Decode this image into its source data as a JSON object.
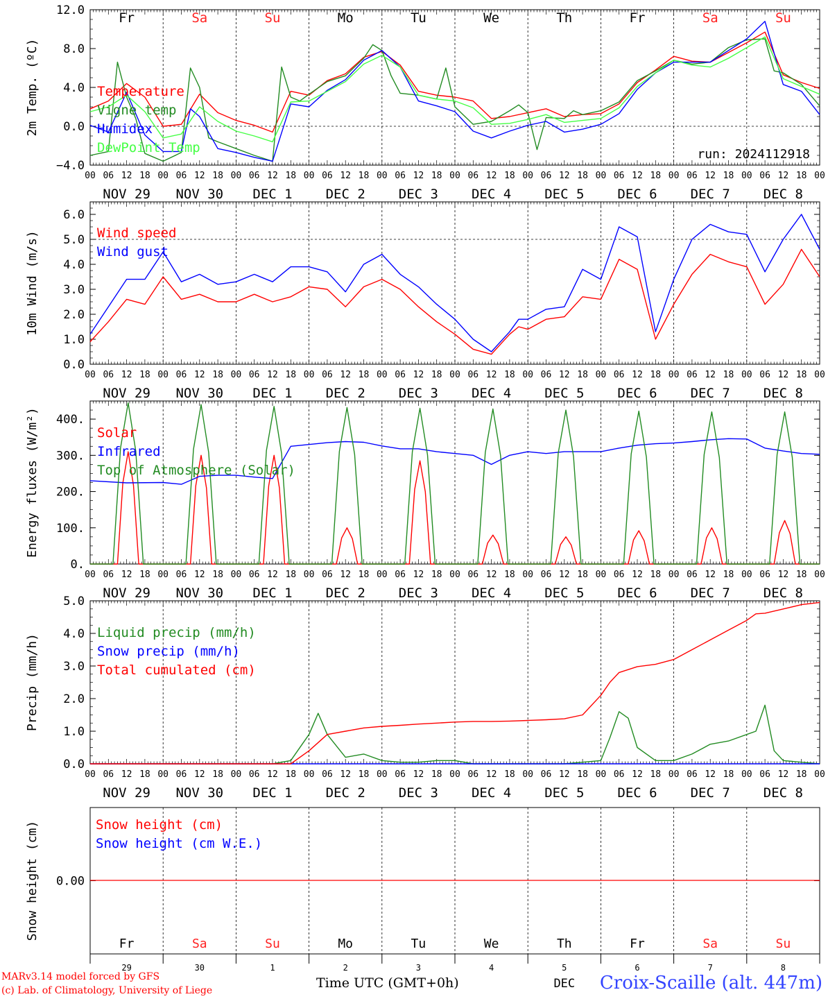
{
  "run_label": "run: 2024112918",
  "days": {
    "names": [
      "Fr",
      "Sa",
      "Su",
      "Mo",
      "Tu",
      "We",
      "Th",
      "Fr",
      "Sa",
      "Su"
    ],
    "weekend_color": "#ff2222",
    "weekday_color": "#000000",
    "weekend_flags": [
      false,
      true,
      true,
      false,
      false,
      false,
      false,
      false,
      true,
      true
    ],
    "date_labels": [
      "NOV 29",
      "NOV 30",
      "DEC  1",
      "DEC  2",
      "DEC  3",
      "DEC  4",
      "DEC  5",
      "DEC  6",
      "DEC  7",
      "DEC  8"
    ],
    "hour_labels": [
      "00",
      "06",
      "12",
      "18"
    ],
    "final_hour_label": "00",
    "bottom_day_numbers": [
      "29",
      "30",
      "1",
      "2",
      "3",
      "4",
      "5",
      "6",
      "7",
      "8"
    ],
    "bottom_month_label": "DEC"
  },
  "footer": {
    "credit_line1": "MARv3.14 model forced by GFS",
    "credit_line2": "(c) Lab. of Climatology, University of Liege",
    "xaxis_label": "Time UTC (GMT+0h)",
    "location": "Croix-Scaille (alt. 447m)"
  },
  "chart_data": [
    {
      "id": "temperature",
      "type": "line",
      "ylabel": "2m Temp. (ºC)",
      "ylim": [
        -4,
        12
      ],
      "yticks": [
        -4,
        0,
        4,
        8,
        12
      ],
      "ytick_labels": [
        "−4.0",
        "0.0",
        "4.0",
        "8.0",
        "12.0"
      ],
      "reference_line": 0,
      "x_unit": "hours since NOV 29 00 UTC",
      "series": [
        {
          "name": "Temperature",
          "color": "#ff0000",
          "x": [
            0,
            6,
            12,
            18,
            24,
            30,
            36,
            42,
            48,
            54,
            60,
            66,
            72,
            78,
            84,
            90,
            96,
            102,
            108,
            114,
            120,
            126,
            132,
            138,
            144,
            150,
            156,
            162,
            168,
            174,
            180,
            186,
            192,
            198,
            204,
            210,
            216,
            222,
            228,
            234,
            240
          ],
          "values": [
            1.8,
            2.6,
            4.4,
            3.0,
            0.0,
            0.2,
            3.3,
            1.4,
            0.6,
            0.1,
            -0.6,
            3.6,
            3.2,
            4.7,
            5.4,
            7.1,
            7.7,
            6.3,
            3.6,
            3.2,
            3.0,
            2.6,
            0.8,
            1.0,
            1.4,
            1.8,
            1.0,
            1.2,
            1.3,
            2.3,
            4.5,
            5.8,
            7.2,
            6.7,
            6.6,
            7.6,
            8.6,
            9.7,
            5.3,
            4.5,
            3.9
          ]
        },
        {
          "name": "Vigne temp",
          "color": "#228b22",
          "x": [
            0,
            6,
            9,
            12,
            15,
            18,
            24,
            30,
            33,
            36,
            39,
            42,
            48,
            54,
            60,
            63,
            66,
            69,
            72,
            78,
            84,
            90,
            93,
            96,
            99,
            102,
            108,
            114,
            117,
            120,
            126,
            132,
            138,
            141,
            144,
            147,
            150,
            156,
            159,
            162,
            168,
            174,
            180,
            186,
            192,
            198,
            204,
            210,
            216,
            222,
            225,
            228,
            234,
            240
          ],
          "values": [
            -3.0,
            -2.6,
            6.6,
            3.0,
            0.8,
            -2.8,
            -3.6,
            -2.7,
            6.0,
            4.0,
            -1.2,
            -1.6,
            -2.3,
            -3.0,
            -3.6,
            6.1,
            3.0,
            2.6,
            3.3,
            4.6,
            5.2,
            7.0,
            8.4,
            7.8,
            5.2,
            3.4,
            3.2,
            2.8,
            6.0,
            2.0,
            0.2,
            0.5,
            1.6,
            2.2,
            1.4,
            -2.4,
            0.9,
            0.8,
            1.6,
            1.2,
            1.6,
            2.5,
            4.7,
            5.7,
            6.8,
            6.4,
            6.6,
            8.1,
            8.9,
            9.0,
            5.7,
            5.5,
            4.3,
            2.1
          ]
        },
        {
          "name": "Humidex",
          "color": "#0000ff",
          "x": [
            0,
            6,
            12,
            18,
            24,
            30,
            33,
            36,
            42,
            48,
            54,
            60,
            66,
            72,
            78,
            84,
            90,
            96,
            102,
            108,
            114,
            120,
            126,
            132,
            138,
            144,
            150,
            156,
            162,
            168,
            174,
            180,
            186,
            192,
            198,
            204,
            210,
            216,
            222,
            228,
            234,
            240
          ],
          "values": [
            0.1,
            -0.6,
            3.5,
            -0.9,
            -2.6,
            -2.6,
            1.8,
            1.0,
            -2.3,
            -2.7,
            -3.2,
            -3.6,
            2.3,
            2.0,
            3.7,
            4.8,
            6.8,
            7.8,
            6.1,
            2.6,
            2.1,
            1.5,
            -0.5,
            -1.2,
            -0.5,
            0.1,
            0.5,
            -0.6,
            -0.3,
            0.2,
            1.3,
            3.8,
            5.5,
            6.6,
            6.6,
            6.6,
            7.8,
            9.0,
            10.8,
            4.3,
            3.6,
            1.2
          ]
        },
        {
          "name": "DewPoint Temp",
          "color": "#44ff44",
          "x": [
            0,
            6,
            12,
            18,
            24,
            30,
            36,
            42,
            48,
            54,
            60,
            66,
            72,
            78,
            84,
            90,
            96,
            102,
            108,
            114,
            120,
            126,
            132,
            138,
            144,
            150,
            156,
            162,
            168,
            174,
            180,
            186,
            192,
            198,
            204,
            210,
            216,
            222,
            228,
            234,
            240
          ],
          "values": [
            1.5,
            2.0,
            3.2,
            1.5,
            -1.2,
            -0.8,
            2.0,
            0.5,
            -0.5,
            -1.0,
            -1.6,
            2.5,
            2.6,
            3.6,
            4.6,
            6.4,
            7.3,
            6.1,
            3.2,
            2.8,
            2.6,
            1.9,
            0.2,
            0.3,
            0.7,
            1.2,
            0.4,
            0.6,
            0.8,
            1.9,
            4.1,
            5.5,
            6.8,
            6.3,
            6.1,
            7.0,
            8.1,
            9.2,
            4.9,
            4.1,
            3.3
          ]
        }
      ]
    },
    {
      "id": "wind",
      "type": "line",
      "ylabel": "10m Wind (m/s)",
      "ylim": [
        0,
        6.5
      ],
      "yticks": [
        0,
        1,
        2,
        3,
        4,
        5,
        6
      ],
      "ytick_labels": [
        "0.0",
        "1.0",
        "2.0",
        "3.0",
        "4.0",
        "5.0",
        "6.0"
      ],
      "reference_line": 5,
      "x_unit": "hours since NOV 29 00 UTC",
      "series": [
        {
          "name": "Wind speed",
          "color": "#ff0000",
          "x": [
            0,
            6,
            12,
            18,
            24,
            30,
            36,
            42,
            48,
            54,
            60,
            66,
            72,
            78,
            84,
            90,
            96,
            102,
            108,
            114,
            120,
            126,
            132,
            138,
            141,
            144,
            150,
            156,
            162,
            168,
            174,
            180,
            186,
            192,
            198,
            204,
            210,
            216,
            222,
            228,
            234,
            240
          ],
          "values": [
            0.9,
            1.7,
            2.6,
            2.4,
            3.5,
            2.6,
            2.8,
            2.5,
            2.5,
            2.8,
            2.5,
            2.7,
            3.1,
            3.0,
            2.3,
            3.1,
            3.4,
            3.0,
            2.3,
            1.7,
            1.2,
            0.6,
            0.4,
            1.2,
            1.5,
            1.4,
            1.8,
            1.9,
            2.7,
            2.6,
            4.2,
            3.8,
            1.0,
            2.4,
            3.6,
            4.4,
            4.1,
            3.9,
            2.4,
            3.2,
            4.6,
            3.5
          ]
        },
        {
          "name": "Wind gust",
          "color": "#0000ff",
          "x": [
            0,
            6,
            12,
            18,
            24,
            30,
            36,
            42,
            48,
            54,
            60,
            66,
            72,
            78,
            84,
            90,
            96,
            102,
            108,
            114,
            120,
            126,
            132,
            138,
            141,
            144,
            150,
            156,
            162,
            168,
            174,
            180,
            186,
            192,
            198,
            204,
            210,
            216,
            222,
            228,
            234,
            240
          ],
          "values": [
            1.2,
            2.3,
            3.4,
            3.4,
            4.5,
            3.3,
            3.6,
            3.2,
            3.3,
            3.6,
            3.3,
            3.9,
            3.9,
            3.7,
            2.9,
            4.0,
            4.4,
            3.6,
            3.1,
            2.4,
            1.8,
            1.0,
            0.5,
            1.3,
            1.8,
            1.8,
            2.2,
            2.3,
            3.8,
            3.4,
            5.5,
            5.1,
            1.3,
            3.4,
            5.0,
            5.6,
            5.3,
            5.2,
            3.7,
            5.0,
            6.0,
            4.6
          ]
        }
      ]
    },
    {
      "id": "energy",
      "type": "line",
      "ylabel": "Energy fluxes (W/m²)",
      "ylim": [
        0,
        450
      ],
      "yticks": [
        0,
        100,
        200,
        300,
        400
      ],
      "ytick_labels": [
        "0.",
        "100.",
        "200.",
        "300.",
        "400."
      ],
      "x_unit": "hours since NOV 29 00 UTC",
      "series": [
        {
          "name": "Solar",
          "color": "#ff0000",
          "peaks_per_day": [
            310,
            300,
            300,
            100,
            285,
            80,
            75,
            92,
            100,
            120
          ]
        },
        {
          "name": "Infrared",
          "color": "#0000ff",
          "x": [
            0,
            12,
            24,
            30,
            36,
            42,
            48,
            54,
            60,
            66,
            72,
            78,
            84,
            90,
            96,
            102,
            108,
            114,
            120,
            126,
            132,
            138,
            144,
            150,
            156,
            162,
            168,
            174,
            180,
            186,
            192,
            198,
            204,
            210,
            216,
            222,
            228,
            234,
            240
          ],
          "values": [
            230,
            224,
            225,
            220,
            242,
            245,
            245,
            240,
            236,
            325,
            330,
            335,
            338,
            336,
            326,
            318,
            318,
            310,
            305,
            300,
            275,
            300,
            310,
            305,
            310,
            310,
            310,
            320,
            328,
            332,
            334,
            338,
            343,
            346,
            345,
            320,
            312,
            305,
            303
          ]
        },
        {
          "name": "Top of Atmosphere (Solar)",
          "color": "#228b22",
          "peaks_per_day": [
            445,
            440,
            435,
            432,
            430,
            428,
            425,
            422,
            420,
            420
          ]
        }
      ]
    },
    {
      "id": "precip",
      "type": "line",
      "ylabel": "Precip (mm/h)",
      "ylim": [
        0,
        5
      ],
      "yticks": [
        0,
        1,
        2,
        3,
        4,
        5
      ],
      "ytick_labels": [
        "0.0",
        "1.0",
        "2.0",
        "3.0",
        "4.0",
        "5.0"
      ],
      "x_unit": "hours since NOV 29 00 UTC",
      "series": [
        {
          "name": "Liquid precip (mm/h)",
          "color": "#228b22",
          "x": [
            0,
            60,
            66,
            72,
            75,
            78,
            84,
            90,
            96,
            102,
            108,
            114,
            120,
            126,
            132,
            138,
            144,
            150,
            156,
            162,
            168,
            171,
            174,
            177,
            180,
            186,
            192,
            198,
            204,
            210,
            216,
            219,
            222,
            225,
            228,
            234,
            240
          ],
          "values": [
            0,
            0,
            0.1,
            0.9,
            1.55,
            0.9,
            0.2,
            0.3,
            0.1,
            0.05,
            0.05,
            0.1,
            0.1,
            0,
            0,
            0,
            0,
            0,
            0,
            0.05,
            0.1,
            0.8,
            1.6,
            1.4,
            0.5,
            0.1,
            0.1,
            0.3,
            0.6,
            0.7,
            0.9,
            1.0,
            1.8,
            0.4,
            0.1,
            0.05,
            0
          ]
        },
        {
          "name": "Snow precip (mm/h)",
          "color": "#0000ff",
          "x": [
            0,
            240
          ],
          "values": [
            0,
            0
          ]
        },
        {
          "name": "Total cumulated (cm)",
          "color": "#ff0000",
          "x": [
            0,
            66,
            72,
            78,
            84,
            90,
            96,
            102,
            108,
            114,
            120,
            126,
            132,
            138,
            144,
            150,
            156,
            162,
            168,
            171,
            174,
            180,
            186,
            192,
            198,
            204,
            210,
            216,
            219,
            222,
            228,
            234,
            240
          ],
          "values": [
            0,
            0,
            0.4,
            0.9,
            1.0,
            1.1,
            1.15,
            1.18,
            1.22,
            1.25,
            1.28,
            1.3,
            1.3,
            1.31,
            1.33,
            1.35,
            1.38,
            1.5,
            2.1,
            2.5,
            2.8,
            2.98,
            3.05,
            3.2,
            3.5,
            3.8,
            4.1,
            4.4,
            4.6,
            4.62,
            4.75,
            4.88,
            4.95
          ]
        }
      ]
    },
    {
      "id": "snow",
      "type": "line",
      "ylabel": "Snow height (cm)",
      "yticks": [
        0
      ],
      "ytick_labels": [
        "0.00"
      ],
      "series": [
        {
          "name": "Snow height (cm)",
          "color": "#ff0000",
          "x": [
            0,
            240
          ],
          "values": [
            0,
            0
          ]
        },
        {
          "name": "Snow height (cm W.E.)",
          "color": "#0000ff",
          "x": [
            0,
            240
          ],
          "values": [
            0,
            0
          ]
        }
      ]
    }
  ]
}
